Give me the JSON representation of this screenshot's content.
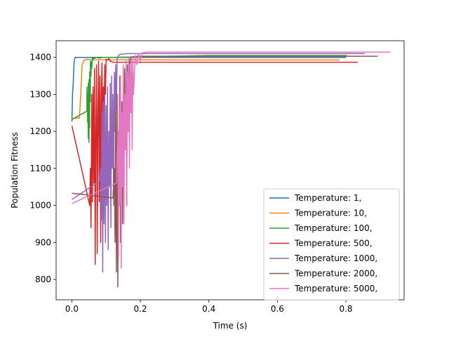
{
  "chart_data": {
    "type": "line",
    "title": "",
    "xlabel": "Time (s)",
    "ylabel": "Population Fitness",
    "xlim": [
      -0.046,
      0.97
    ],
    "ylim": [
      745,
      1445
    ],
    "xticks": [
      0.0,
      0.2,
      0.4,
      0.6,
      0.8
    ],
    "xtick_labels": [
      "0.0",
      "0.2",
      "0.4",
      "0.6",
      "0.8"
    ],
    "yticks": [
      800,
      900,
      1000,
      1100,
      1200,
      1300,
      1400
    ],
    "ytick_labels": [
      "800",
      "900",
      "1000",
      "1100",
      "1200",
      "1300",
      "1400"
    ],
    "grid": false,
    "legend_position": "lower-right",
    "series": [
      {
        "name": "Temperature: 1,",
        "color": "#1f77b4",
        "x": [
          0.0,
          0.001,
          0.002,
          0.004,
          0.005,
          0.006,
          0.008,
          0.01,
          0.3,
          0.6,
          0.8,
          0.8
        ],
        "y": [
          1226,
          1260,
          1300,
          1330,
          1360,
          1380,
          1395,
          1400,
          1400,
          1400,
          1400,
          1400
        ]
      },
      {
        "name": "Temperature: 10,",
        "color": "#ff7f0e",
        "x": [
          0.0,
          0.005,
          0.015,
          0.022,
          0.024,
          0.026,
          0.028,
          0.03,
          0.035,
          0.045,
          0.05,
          0.3,
          0.6,
          0.782
        ],
        "y": [
          1232,
          1236,
          1236,
          1236,
          1270,
          1300,
          1340,
          1380,
          1392,
          1395,
          1394,
          1393,
          1393,
          1393
        ]
      },
      {
        "name": "Temperature: 100,",
        "color": "#2ca02c",
        "x": [
          0.0,
          0.044,
          0.044,
          0.046,
          0.046,
          0.048,
          0.048,
          0.05,
          0.05,
          0.052,
          0.052,
          0.054,
          0.054,
          0.056,
          0.056,
          0.058,
          0.058,
          0.06,
          0.062,
          0.064,
          0.066,
          0.07,
          0.08,
          0.09,
          0.11,
          0.4,
          0.6,
          0.803
        ],
        "y": [
          1232,
          1255,
          1320,
          1225,
          1300,
          1180,
          1330,
          1170,
          1340,
          1210,
          1360,
          1280,
          1390,
          1350,
          1380,
          1390,
          1370,
          1398,
          1394,
          1400,
          1397,
          1400,
          1398,
          1400,
          1400,
          1405,
          1405,
          1405
        ]
      },
      {
        "name": "Temperature: 500,",
        "color": "#d62728",
        "x": [
          0.0,
          0.045,
          0.052,
          0.054,
          0.056,
          0.058,
          0.06,
          0.062,
          0.064,
          0.066,
          0.068,
          0.07,
          0.072,
          0.074,
          0.076,
          0.078,
          0.08,
          0.082,
          0.084,
          0.086,
          0.088,
          0.09,
          0.092,
          0.094,
          0.096,
          0.098,
          0.1,
          0.104,
          0.108,
          0.112,
          0.12,
          0.4,
          0.7,
          0.835
        ],
        "y": [
          1215,
          1030,
          1000,
          1100,
          940,
          1300,
          1010,
          1320,
          1060,
          1370,
          840,
          1200,
          1380,
          870,
          1250,
          1390,
          1010,
          1350,
          900,
          1300,
          1385,
          1150,
          1320,
          1200,
          1380,
          1300,
          1395,
          1392,
          1397,
          1390,
          1387,
          1387,
          1387,
          1387
        ]
      },
      {
        "name": "Temperature: 1000,",
        "color": "#9467bd",
        "x": [
          0.0,
          0.08,
          0.084,
          0.086,
          0.088,
          0.09,
          0.092,
          0.094,
          0.096,
          0.098,
          0.1,
          0.102,
          0.104,
          0.106,
          0.108,
          0.11,
          0.112,
          0.114,
          0.116,
          0.118,
          0.12,
          0.122,
          0.124,
          0.126,
          0.128,
          0.13,
          0.132,
          0.134,
          0.136,
          0.14,
          0.16,
          0.4,
          0.7,
          0.855
        ],
        "y": [
          1016,
          1065,
          1100,
          960,
          1250,
          820,
          1280,
          950,
          1300,
          900,
          1270,
          1000,
          1320,
          880,
          1200,
          1050,
          1330,
          940,
          1350,
          1100,
          1300,
          1000,
          1360,
          1200,
          1380,
          1250,
          1398,
          1400,
          1405,
          1408,
          1410,
          1410,
          1410,
          1410
        ]
      },
      {
        "name": "Temperature: 2000,",
        "color": "#8c564b",
        "x": [
          0.0,
          0.12,
          0.124,
          0.126,
          0.128,
          0.13,
          0.132,
          0.134,
          0.136,
          0.138,
          0.14,
          0.142,
          0.144,
          0.146,
          0.148,
          0.15,
          0.152,
          0.154,
          0.156,
          0.158,
          0.16,
          0.162,
          0.164,
          0.166,
          0.168,
          0.17,
          0.174,
          0.18,
          0.19,
          0.4,
          0.7,
          0.893
        ],
        "y": [
          1033,
          1020,
          1100,
          900,
          1250,
          820,
          1300,
          780,
          1200,
          1000,
          1350,
          900,
          1100,
          1280,
          950,
          1320,
          1050,
          1370,
          1150,
          1360,
          1000,
          1380,
          1200,
          1390,
          1300,
          1395,
          1400,
          1402,
          1403,
          1403,
          1403,
          1403
        ]
      },
      {
        "name": "Temperature: 5000,",
        "color": "#e377c2",
        "x": [
          0.0,
          0.13,
          0.134,
          0.136,
          0.138,
          0.14,
          0.142,
          0.144,
          0.146,
          0.148,
          0.15,
          0.152,
          0.154,
          0.156,
          0.158,
          0.16,
          0.162,
          0.164,
          0.166,
          0.168,
          0.17,
          0.172,
          0.174,
          0.176,
          0.178,
          0.18,
          0.185,
          0.19,
          0.195,
          0.2,
          0.205,
          0.21,
          0.22,
          0.5,
          0.8,
          0.93
        ],
        "y": [
          1005,
          1060,
          1200,
          860,
          1300,
          1000,
          1350,
          830,
          1250,
          1050,
          1380,
          950,
          1300,
          1150,
          1390,
          1000,
          1360,
          1200,
          1400,
          1100,
          1380,
          1250,
          1395,
          1150,
          1400,
          1300,
          1405,
          1380,
          1410,
          1390,
          1412,
          1413,
          1414,
          1414,
          1414,
          1414
        ]
      }
    ]
  }
}
